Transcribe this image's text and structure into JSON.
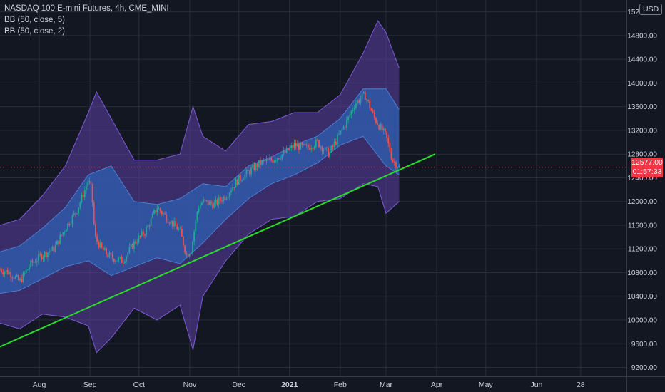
{
  "chart_data": {
    "type": "candlestick",
    "symbol_title": "NASDAQ 100 E-mini Futures, 4h, CME_MINI",
    "indicators": [
      "BB (50, close, 5)",
      "BB (50, close, 2)"
    ],
    "currency": "USD",
    "price_axis": {
      "ylim": [
        9050,
        15400
      ],
      "ticks": [
        "9200.00",
        "9600.00",
        "10000.00",
        "10400.00",
        "10800.00",
        "11200.00",
        "11600.00",
        "12000.00",
        "12400.00",
        "12800.00",
        "13200.00",
        "13600.00",
        "14000.00",
        "14400.00",
        "14800.00",
        "15200.00"
      ]
    },
    "time_axis": {
      "labels": [
        "Aug",
        "Sep",
        "Oct",
        "Nov",
        "Dec",
        "2021",
        "Feb",
        "Mar",
        "Apr",
        "May",
        "Jun",
        "28"
      ],
      "label_dates": [
        "2020-08-01",
        "2020-09-01",
        "2020-10-01",
        "2020-11-01",
        "2020-12-01",
        "2021-01-01",
        "2021-02-01",
        "2021-03-01",
        "2021-04-01",
        "2021-05-01",
        "2021-06-01",
        "2021-06-28"
      ],
      "xlim": [
        "2020-07-08",
        "2021-07-26"
      ]
    },
    "last_price": {
      "value": "12577.00",
      "countdown": "01:57:33",
      "price": 12577
    },
    "trendline": {
      "start": [
        "2020-07-08",
        9550
      ],
      "end": [
        "2021-03-31",
        12800
      ],
      "color": "#2bdb2b"
    },
    "series": [
      {
        "name": "Price",
        "x": [
          "2020-07-08",
          "2020-07-14",
          "2020-07-20",
          "2020-07-27",
          "2020-08-03",
          "2020-08-10",
          "2020-08-17",
          "2020-08-24",
          "2020-08-31",
          "2020-09-02",
          "2020-09-04",
          "2020-09-08",
          "2020-09-14",
          "2020-09-21",
          "2020-09-28",
          "2020-10-05",
          "2020-10-12",
          "2020-10-19",
          "2020-10-26",
          "2020-10-30",
          "2020-11-02",
          "2020-11-06",
          "2020-11-09",
          "2020-11-16",
          "2020-11-23",
          "2020-11-30",
          "2020-12-07",
          "2020-12-14",
          "2020-12-21",
          "2020-12-28",
          "2021-01-04",
          "2021-01-11",
          "2021-01-18",
          "2021-01-25",
          "2021-01-29",
          "2021-02-05",
          "2021-02-10",
          "2021-02-16",
          "2021-02-22",
          "2021-03-01",
          "2021-03-05",
          "2021-03-09"
        ],
        "values": [
          10850,
          10800,
          10650,
          10950,
          11100,
          11200,
          11550,
          11850,
          12350,
          12200,
          11400,
          11200,
          11050,
          11000,
          11300,
          11500,
          11900,
          11700,
          11500,
          11100,
          11200,
          11900,
          12000,
          11950,
          12100,
          12350,
          12500,
          12650,
          12700,
          12800,
          12950,
          12900,
          13000,
          12800,
          13000,
          13350,
          13650,
          13800,
          13400,
          13100,
          12700,
          12580
        ]
      },
      {
        "name": "BB (50, close, 2) upper",
        "x": [
          "2020-07-08",
          "2020-07-20",
          "2020-08-03",
          "2020-08-17",
          "2020-08-31",
          "2020-09-14",
          "2020-09-28",
          "2020-10-12",
          "2020-10-26",
          "2020-11-09",
          "2020-11-23",
          "2020-12-07",
          "2020-12-21",
          "2021-01-04",
          "2021-01-18",
          "2021-02-01",
          "2021-02-15",
          "2021-03-01",
          "2021-03-09"
        ],
        "values": [
          11150,
          11250,
          11550,
          11900,
          12450,
          12600,
          12000,
          11950,
          12050,
          12300,
          12250,
          12600,
          12750,
          12950,
          13100,
          13400,
          13900,
          13900,
          13550
        ]
      },
      {
        "name": "BB (50, close, 2) lower",
        "x": [
          "2020-07-08",
          "2020-07-20",
          "2020-08-03",
          "2020-08-17",
          "2020-08-31",
          "2020-09-14",
          "2020-09-28",
          "2020-10-12",
          "2020-10-26",
          "2020-11-09",
          "2020-11-23",
          "2020-12-07",
          "2020-12-21",
          "2021-01-04",
          "2021-01-18",
          "2021-02-01",
          "2021-02-15",
          "2021-03-01",
          "2021-03-09"
        ],
        "values": [
          10450,
          10500,
          10700,
          10900,
          11000,
          10750,
          10900,
          11050,
          10950,
          11300,
          11700,
          12050,
          12300,
          12450,
          12650,
          12950,
          13100,
          12600,
          12450
        ]
      },
      {
        "name": "BB (50, close, 5) upper",
        "x": [
          "2020-07-08",
          "2020-07-20",
          "2020-08-03",
          "2020-08-17",
          "2020-08-31",
          "2020-09-05",
          "2020-09-14",
          "2020-09-28",
          "2020-10-12",
          "2020-10-26",
          "2020-11-03",
          "2020-11-09",
          "2020-11-23",
          "2020-12-07",
          "2020-12-21",
          "2021-01-04",
          "2021-01-18",
          "2021-02-01",
          "2021-02-15",
          "2021-02-24",
          "2021-03-01",
          "2021-03-09"
        ],
        "values": [
          11600,
          11700,
          12100,
          12600,
          13500,
          13850,
          13400,
          12700,
          12700,
          12800,
          13600,
          13100,
          12850,
          13300,
          13350,
          13500,
          13500,
          13800,
          14500,
          15050,
          14850,
          14250
        ]
      },
      {
        "name": "BB (50, close, 5) lower",
        "x": [
          "2020-07-08",
          "2020-07-20",
          "2020-08-03",
          "2020-08-17",
          "2020-08-31",
          "2020-09-05",
          "2020-09-14",
          "2020-09-28",
          "2020-10-12",
          "2020-10-26",
          "2020-11-03",
          "2020-11-09",
          "2020-11-23",
          "2020-12-07",
          "2020-12-21",
          "2021-01-04",
          "2021-01-18",
          "2021-02-01",
          "2021-02-15",
          "2021-02-24",
          "2021-03-01",
          "2021-03-09"
        ],
        "values": [
          9950,
          9850,
          10100,
          10050,
          9900,
          9450,
          9700,
          10200,
          10000,
          10250,
          9500,
          10400,
          11000,
          11450,
          11700,
          11750,
          12000,
          12050,
          12300,
          12250,
          11800,
          12000
        ]
      }
    ],
    "grid": true,
    "colors": {
      "background": "#131722",
      "grid": "#2a2e39",
      "text": "#d1d4dc",
      "candle_up": "#26a69a",
      "candle_down": "#ef5350",
      "outer_band_fill": "#5b3fa6",
      "inner_band_fill": "#2e5fb2",
      "trendline": "#2bdb2b",
      "price_tag": "#f23645"
    }
  }
}
